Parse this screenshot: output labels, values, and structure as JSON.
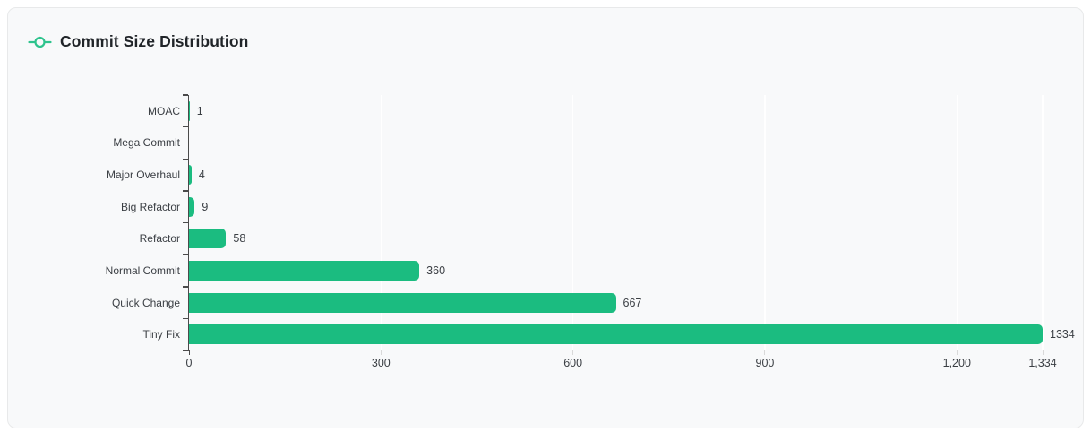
{
  "card": {
    "title": "Commit Size Distribution",
    "icon": "git-commit-icon"
  },
  "colors": {
    "bar": "#1bbc80",
    "icon_green": "#2ec38d",
    "card_background": "#f8f9fa",
    "card_border": "#e8e9ea",
    "axis": "#4b4b4b",
    "gridline": "#ffffff",
    "minor_tick": "#d9d9d9",
    "label_text": "#3b3f44",
    "title_text": "#212529"
  },
  "chart_data": {
    "type": "bar",
    "orientation": "horizontal",
    "title": "Commit Size Distribution",
    "categories": [
      "MOAC",
      "Mega Commit",
      "Major Overhaul",
      "Big Refactor",
      "Refactor",
      "Normal Commit",
      "Quick Change",
      "Tiny Fix"
    ],
    "values": [
      1,
      0,
      4,
      9,
      58,
      360,
      667,
      1334
    ],
    "value_labels": [
      "1",
      "",
      "4",
      "9",
      "58",
      "360",
      "667",
      "1334"
    ],
    "x_ticks": [
      0,
      300,
      600,
      900,
      1200,
      1334
    ],
    "x_tick_labels": [
      "0",
      "300",
      "600",
      "900",
      "1,200",
      "1,334"
    ],
    "xlim": [
      0,
      1334
    ],
    "xlabel": "",
    "ylabel": "",
    "grid": "vertical-gridlines",
    "legend": "none"
  }
}
